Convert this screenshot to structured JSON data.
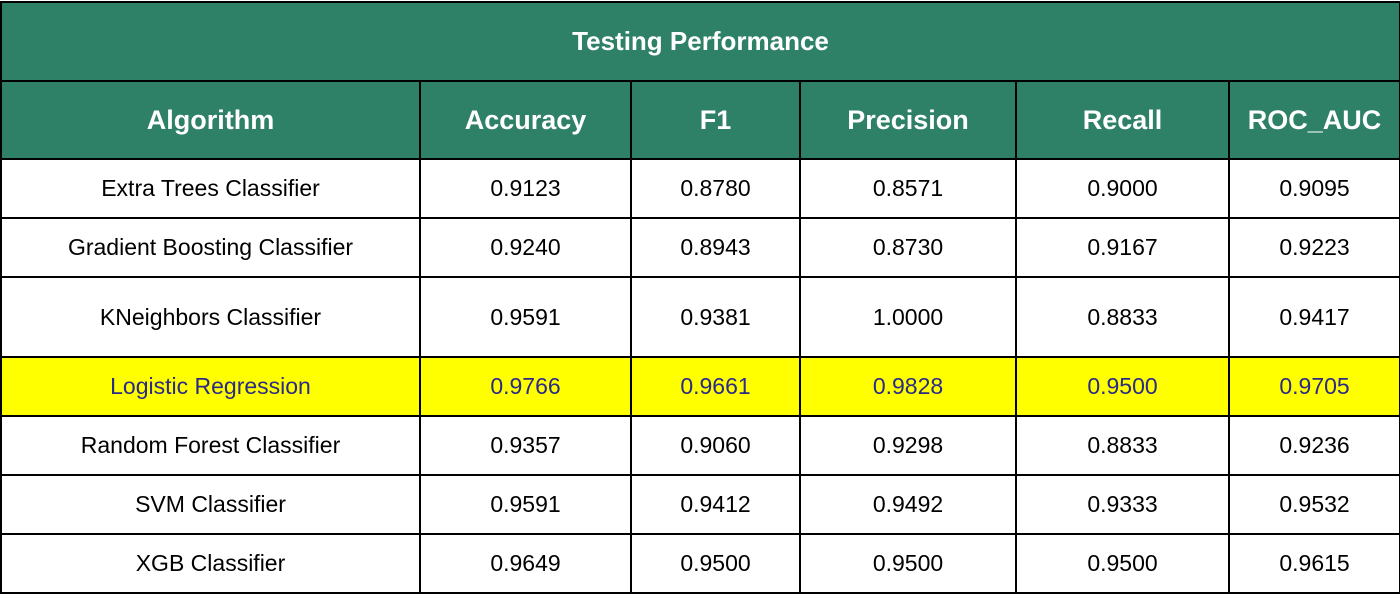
{
  "chart_data": {
    "type": "table",
    "title": "Testing Performance",
    "columns": [
      "Algorithm",
      "Accuracy",
      "F1",
      "Precision",
      "Recall",
      "ROC_AUC"
    ],
    "rows": [
      {
        "algorithm": "Extra Trees Classifier",
        "values": [
          "0.9123",
          "0.8780",
          "0.8571",
          "0.9000",
          "0.9095"
        ]
      },
      {
        "algorithm": "Gradient Boosting Classifier",
        "values": [
          "0.9240",
          "0.8943",
          "0.8730",
          "0.9167",
          "0.9223"
        ]
      },
      {
        "algorithm": "KNeighbors Classifier",
        "values": [
          "0.9591",
          "0.9381",
          "1.0000",
          "0.8833",
          "0.9417"
        ]
      },
      {
        "algorithm": "Logistic Regression",
        "values": [
          "0.9766",
          "0.9661",
          "0.9828",
          "0.9500",
          "0.9705"
        ],
        "highlighted": true
      },
      {
        "algorithm": "Random Forest Classifier",
        "values": [
          "0.9357",
          "0.9060",
          "0.9298",
          "0.8833",
          "0.9236"
        ]
      },
      {
        "algorithm": "SVM Classifier",
        "values": [
          "0.9591",
          "0.9412",
          "0.9492",
          "0.9333",
          "0.9532"
        ]
      },
      {
        "algorithm": "XGB Classifier",
        "values": [
          "0.9649",
          "0.9500",
          "0.9500",
          "0.9500",
          "0.9615"
        ]
      }
    ]
  },
  "colors": {
    "header_bg": "#2e8066",
    "header_text": "#ffffff",
    "highlight_bg": "#ffff00",
    "highlight_text": "#2a2a88"
  }
}
